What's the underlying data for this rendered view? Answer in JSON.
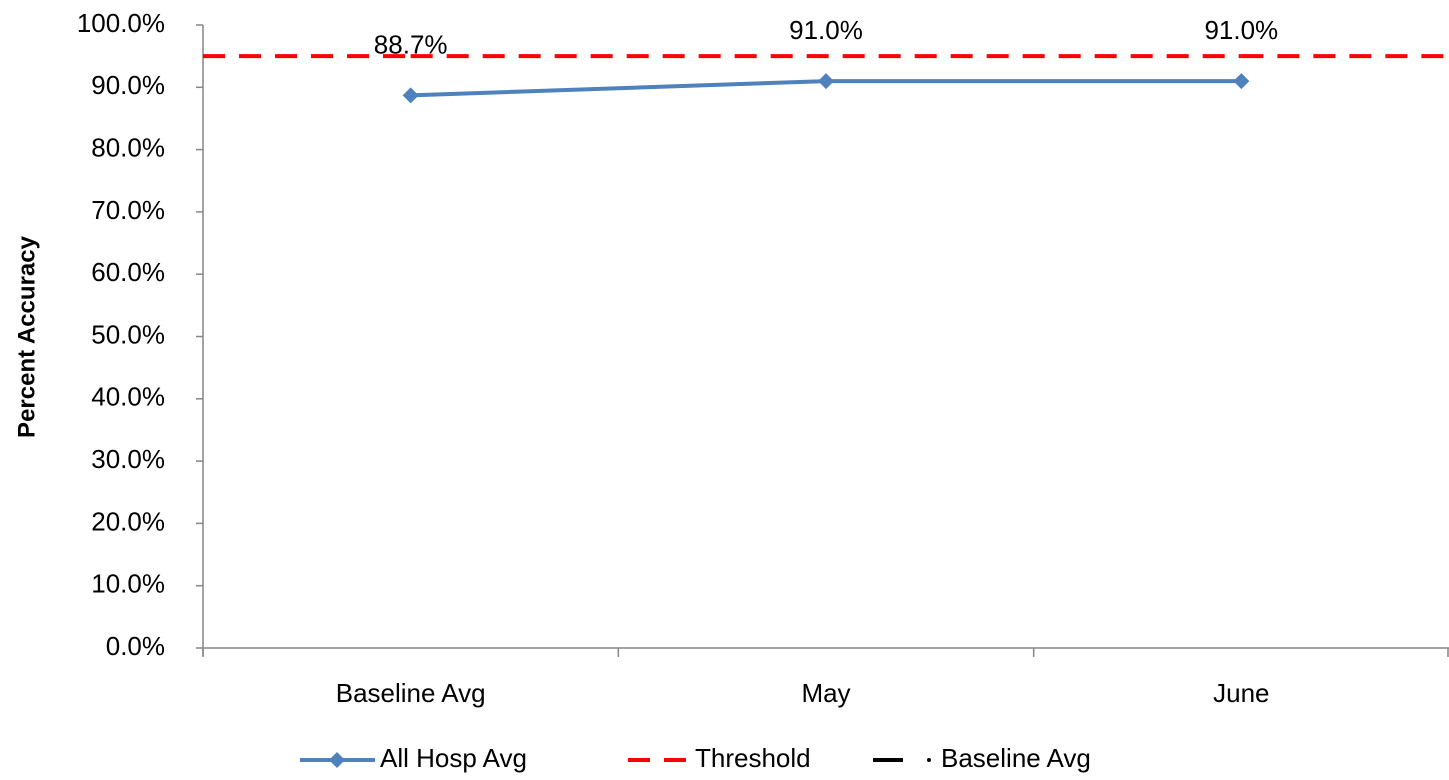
{
  "chart_data": {
    "type": "line",
    "y_label": "Percent Accuracy",
    "categories": [
      "Baseline Avg",
      "May",
      "June"
    ],
    "ylim": [
      0,
      100
    ],
    "yticks": [
      {
        "value": 0,
        "label": "0.0%"
      },
      {
        "value": 10,
        "label": "10.0%"
      },
      {
        "value": 20,
        "label": "20.0%"
      },
      {
        "value": 30,
        "label": "30.0%"
      },
      {
        "value": 40,
        "label": "40.0%"
      },
      {
        "value": 50,
        "label": "50.0%"
      },
      {
        "value": 60,
        "label": "60.0%"
      },
      {
        "value": 70,
        "label": "70.0%"
      },
      {
        "value": 80,
        "label": "80.0%"
      },
      {
        "value": 90,
        "label": "90.0%"
      },
      {
        "value": 100,
        "label": "100.0%"
      }
    ],
    "series": [
      {
        "name": "All Hosp Avg",
        "color": "#4f81bd",
        "values": [
          88.7,
          91.0,
          91.0
        ],
        "value_labels": [
          "88.7%",
          "91.0%",
          "91.0%"
        ]
      },
      {
        "name": "Threshold",
        "color": "#ff0000",
        "values": [
          95,
          95,
          95
        ]
      },
      {
        "name": "Baseline Avg",
        "color": "#000000",
        "values": [
          null,
          null,
          null
        ]
      }
    ]
  }
}
